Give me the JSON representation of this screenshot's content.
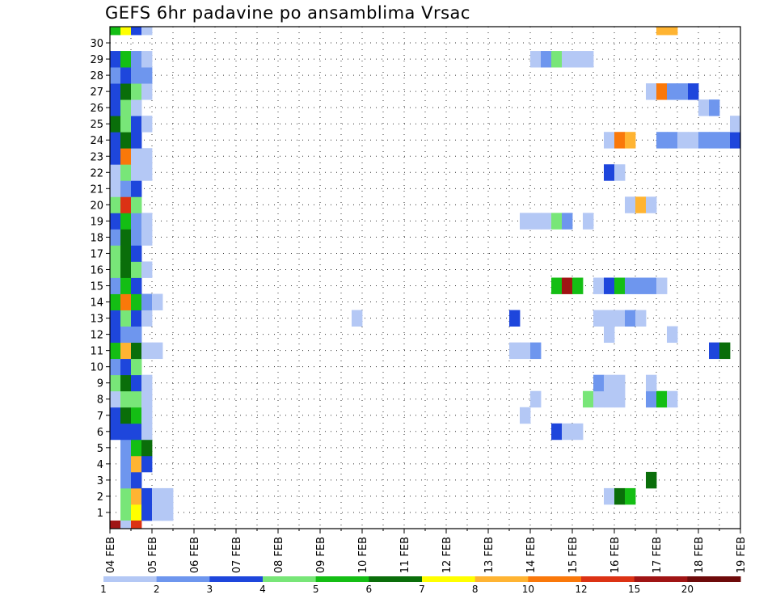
{
  "chart_data": {
    "type": "heatmap",
    "title": "GEFS 6hr padavine po ansamblima Vrsac",
    "y_categories": [
      "1",
      "2",
      "3",
      "4",
      "5",
      "6",
      "7",
      "8",
      "9",
      "10",
      "11",
      "12",
      "13",
      "14",
      "15",
      "16",
      "17",
      "18",
      "19",
      "20",
      "21",
      "22",
      "23",
      "24",
      "25",
      "26",
      "27",
      "28",
      "29",
      "30"
    ],
    "x_ticks": [
      "04 FEB",
      "05 FEB",
      "06 FEB",
      "07 FEB",
      "08 FEB",
      "09 FEB",
      "10 FEB",
      "11 FEB",
      "12 FEB",
      "13 FEB",
      "14 FEB",
      "15 FEB",
      "16 FEB",
      "17 FEB",
      "18 FEB",
      "19 FEB"
    ],
    "x_range_days": [
      0,
      15
    ],
    "time_step": "6hr",
    "grid": "dotted",
    "legend": {
      "position": "bottom",
      "labels": [
        "1",
        "2",
        "3",
        "4",
        "5",
        "6",
        "7",
        "8",
        "10",
        "12",
        "15",
        "20"
      ],
      "colors": [
        "#b4c8f5",
        "#6e96ee",
        "#1e46dc",
        "#78e678",
        "#14be14",
        "#0a6e0a",
        "#ffff00",
        "#ffb432",
        "#fa780a",
        "#dc3214",
        "#a01414",
        "#6e0a0a"
      ]
    },
    "cells": [
      [
        1,
        0.25,
        4
      ],
      [
        1,
        0.5,
        7
      ],
      [
        1,
        0.75,
        3
      ],
      [
        1,
        1.0,
        1
      ],
      [
        1,
        1.25,
        1
      ],
      [
        2,
        0.25,
        4
      ],
      [
        2,
        0.5,
        8
      ],
      [
        2,
        0.75,
        3
      ],
      [
        2,
        1.0,
        1
      ],
      [
        2,
        1.25,
        1
      ],
      [
        2,
        11.75,
        1
      ],
      [
        2,
        12.0,
        6
      ],
      [
        2,
        12.25,
        5
      ],
      [
        3,
        0.25,
        2
      ],
      [
        3,
        0.5,
        3
      ],
      [
        3,
        12.75,
        6
      ],
      [
        4,
        0.25,
        2
      ],
      [
        4,
        0.5,
        8
      ],
      [
        4,
        0.75,
        3
      ],
      [
        5,
        0.25,
        2
      ],
      [
        5,
        0.5,
        5
      ],
      [
        5,
        0.75,
        6
      ],
      [
        6,
        0.0,
        3
      ],
      [
        6,
        0.25,
        3
      ],
      [
        6,
        0.5,
        3
      ],
      [
        6,
        0.75,
        1
      ],
      [
        6,
        10.5,
        3
      ],
      [
        6,
        10.75,
        1
      ],
      [
        6,
        11.0,
        1
      ],
      [
        7,
        0.0,
        3
      ],
      [
        7,
        0.25,
        6
      ],
      [
        7,
        0.5,
        5
      ],
      [
        7,
        0.75,
        1
      ],
      [
        7,
        9.75,
        1
      ],
      [
        8,
        0.0,
        1
      ],
      [
        8,
        0.25,
        4
      ],
      [
        8,
        0.5,
        4
      ],
      [
        8,
        0.75,
        1
      ],
      [
        8,
        10.0,
        1
      ],
      [
        8,
        11.25,
        4
      ],
      [
        8,
        11.5,
        1
      ],
      [
        8,
        11.75,
        1
      ],
      [
        8,
        12.0,
        1
      ],
      [
        8,
        12.75,
        2
      ],
      [
        8,
        13.0,
        5
      ],
      [
        8,
        13.25,
        1
      ],
      [
        9,
        0.0,
        4
      ],
      [
        9,
        0.25,
        6
      ],
      [
        9,
        0.5,
        3
      ],
      [
        9,
        0.75,
        1
      ],
      [
        9,
        11.5,
        2
      ],
      [
        9,
        11.75,
        1
      ],
      [
        9,
        12.0,
        1
      ],
      [
        9,
        12.75,
        1
      ],
      [
        10,
        0.0,
        2
      ],
      [
        10,
        0.25,
        3
      ],
      [
        10,
        0.5,
        4
      ],
      [
        11,
        0.0,
        5
      ],
      [
        11,
        0.25,
        8
      ],
      [
        11,
        0.5,
        6
      ],
      [
        11,
        0.75,
        1
      ],
      [
        11,
        1.0,
        1
      ],
      [
        11,
        9.5,
        1
      ],
      [
        11,
        9.75,
        1
      ],
      [
        11,
        10.0,
        2
      ],
      [
        11,
        14.25,
        3
      ],
      [
        11,
        14.5,
        6
      ],
      [
        12,
        0.0,
        3
      ],
      [
        12,
        0.25,
        2
      ],
      [
        12,
        0.5,
        2
      ],
      [
        12,
        11.75,
        1
      ],
      [
        12,
        13.25,
        1
      ],
      [
        13,
        0.0,
        3
      ],
      [
        13,
        0.25,
        4
      ],
      [
        13,
        0.5,
        3
      ],
      [
        13,
        0.75,
        1
      ],
      [
        13,
        5.75,
        1
      ],
      [
        13,
        9.5,
        3
      ],
      [
        13,
        11.5,
        1
      ],
      [
        13,
        11.75,
        1
      ],
      [
        13,
        12.0,
        1
      ],
      [
        13,
        12.25,
        2
      ],
      [
        13,
        12.5,
        1
      ],
      [
        14,
        0.0,
        5
      ],
      [
        14,
        0.25,
        9
      ],
      [
        14,
        0.5,
        5
      ],
      [
        14,
        0.75,
        2
      ],
      [
        14,
        1.0,
        1
      ],
      [
        15,
        0.0,
        2
      ],
      [
        15,
        0.25,
        5
      ],
      [
        15,
        0.5,
        3
      ],
      [
        15,
        10.5,
        5
      ],
      [
        15,
        10.75,
        11
      ],
      [
        15,
        11.0,
        5
      ],
      [
        15,
        11.5,
        1
      ],
      [
        15,
        11.75,
        3
      ],
      [
        15,
        12.0,
        5
      ],
      [
        15,
        12.25,
        2
      ],
      [
        15,
        12.5,
        2
      ],
      [
        15,
        12.75,
        2
      ],
      [
        15,
        13.0,
        1
      ],
      [
        16,
        0.0,
        4
      ],
      [
        16,
        0.25,
        6
      ],
      [
        16,
        0.5,
        4
      ],
      [
        16,
        0.75,
        1
      ],
      [
        17,
        0.0,
        4
      ],
      [
        17,
        0.25,
        6
      ],
      [
        17,
        0.5,
        3
      ],
      [
        18,
        0.0,
        2
      ],
      [
        18,
        0.25,
        6
      ],
      [
        18,
        0.5,
        2
      ],
      [
        18,
        0.75,
        1
      ],
      [
        19,
        0.0,
        3
      ],
      [
        19,
        0.25,
        5
      ],
      [
        19,
        0.5,
        2
      ],
      [
        19,
        0.75,
        1
      ],
      [
        19,
        9.75,
        1
      ],
      [
        19,
        10.0,
        1
      ],
      [
        19,
        10.25,
        1
      ],
      [
        19,
        10.5,
        4
      ],
      [
        19,
        10.75,
        2
      ],
      [
        19,
        11.25,
        1
      ],
      [
        20,
        0.0,
        4
      ],
      [
        20,
        0.25,
        10
      ],
      [
        20,
        0.5,
        4
      ],
      [
        20,
        12.25,
        1
      ],
      [
        20,
        12.5,
        8
      ],
      [
        20,
        12.75,
        1
      ],
      [
        21,
        0.0,
        1
      ],
      [
        21,
        0.25,
        2
      ],
      [
        21,
        0.5,
        3
      ],
      [
        22,
        0.0,
        1
      ],
      [
        22,
        0.25,
        4
      ],
      [
        22,
        0.5,
        1
      ],
      [
        22,
        0.75,
        1
      ],
      [
        22,
        11.75,
        3
      ],
      [
        22,
        12.0,
        1
      ],
      [
        23,
        0.0,
        3
      ],
      [
        23,
        0.25,
        9
      ],
      [
        23,
        0.5,
        1
      ],
      [
        23,
        0.75,
        1
      ],
      [
        24,
        0.0,
        3
      ],
      [
        24,
        0.25,
        6
      ],
      [
        24,
        0.5,
        3
      ],
      [
        24,
        11.75,
        1
      ],
      [
        24,
        12.0,
        9
      ],
      [
        24,
        12.25,
        8
      ],
      [
        24,
        13.0,
        2
      ],
      [
        24,
        13.25,
        2
      ],
      [
        24,
        13.5,
        1
      ],
      [
        24,
        13.75,
        1
      ],
      [
        24,
        14.0,
        2
      ],
      [
        24,
        14.25,
        2
      ],
      [
        24,
        14.5,
        2
      ],
      [
        24,
        14.75,
        3
      ],
      [
        25,
        0.0,
        6
      ],
      [
        25,
        0.25,
        4
      ],
      [
        25,
        0.5,
        3
      ],
      [
        25,
        0.75,
        1
      ],
      [
        25,
        14.75,
        1
      ],
      [
        25,
        15.0,
        2
      ],
      [
        26,
        0.0,
        3
      ],
      [
        26,
        0.25,
        4
      ],
      [
        26,
        0.5,
        1
      ],
      [
        26,
        14.0,
        1
      ],
      [
        26,
        14.25,
        2
      ],
      [
        27,
        0.0,
        3
      ],
      [
        27,
        0.25,
        6
      ],
      [
        27,
        0.5,
        4
      ],
      [
        27,
        0.75,
        1
      ],
      [
        27,
        12.75,
        1
      ],
      [
        27,
        13.0,
        9
      ],
      [
        27,
        13.25,
        2
      ],
      [
        27,
        13.5,
        2
      ],
      [
        27,
        13.75,
        3
      ],
      [
        28,
        0.0,
        2
      ],
      [
        28,
        0.25,
        3
      ],
      [
        28,
        0.5,
        2
      ],
      [
        28,
        0.75,
        2
      ],
      [
        29,
        0.0,
        3
      ],
      [
        29,
        0.25,
        5
      ],
      [
        29,
        0.5,
        2
      ],
      [
        29,
        0.75,
        1
      ],
      [
        29,
        10.0,
        1
      ],
      [
        29,
        10.25,
        2
      ],
      [
        29,
        10.5,
        4
      ],
      [
        29,
        10.75,
        1
      ],
      [
        29,
        11.0,
        1
      ],
      [
        29,
        11.25,
        1
      ],
      [
        30,
        0.0,
        5
      ],
      [
        30,
        0.25,
        7
      ],
      [
        30,
        0.5,
        3
      ],
      [
        30,
        0.75,
        1
      ],
      [
        30,
        13.0,
        8
      ],
      [
        30,
        13.25,
        8
      ],
      [
        30,
        15.0,
        4
      ],
      [
        0,
        0.0,
        11
      ],
      [
        0,
        0.25,
        1
      ],
      [
        0,
        0.5,
        10
      ],
      [
        0,
        15.0,
        4
      ]
    ]
  }
}
